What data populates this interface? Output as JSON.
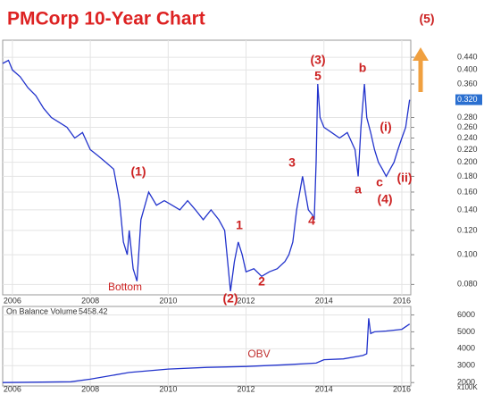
{
  "chart_data": [
    {
      "type": "line",
      "title": "PMCorp 10-Year Chart",
      "log_scale": true,
      "grid": true,
      "xlim": [
        2005.75,
        2016.23
      ],
      "xticks": [
        2006,
        2008,
        2010,
        2012,
        2014,
        2016
      ],
      "ylim": [
        0.074,
        0.5
      ],
      "yticks": [
        {
          "value": 0.08,
          "label": "0.080"
        },
        {
          "value": 0.1,
          "label": "0.100"
        },
        {
          "value": 0.12,
          "label": "0.120"
        },
        {
          "value": 0.14,
          "label": "0.140"
        },
        {
          "value": 0.16,
          "label": "0.160"
        },
        {
          "value": 0.18,
          "label": "0.180"
        },
        {
          "value": 0.2,
          "label": "0.200"
        },
        {
          "value": 0.22,
          "label": "0.220"
        },
        {
          "value": 0.24,
          "label": "0.240"
        },
        {
          "value": 0.26,
          "label": "0.260"
        },
        {
          "value": 0.28,
          "label": "0.280"
        },
        {
          "value": 0.36,
          "label": "0.360"
        },
        {
          "value": 0.4,
          "label": "0.400"
        },
        {
          "value": 0.44,
          "label": "0.440"
        }
      ],
      "last_price": {
        "value": 0.32,
        "label": "0.320"
      },
      "x": [
        2005.75,
        2005.9,
        2006.0,
        2006.2,
        2006.4,
        2006.6,
        2006.8,
        2007.0,
        2007.2,
        2007.4,
        2007.6,
        2007.8,
        2008.0,
        2008.2,
        2008.4,
        2008.6,
        2008.75,
        2008.85,
        2008.95,
        2009.0,
        2009.1,
        2009.2,
        2009.3,
        2009.5,
        2009.7,
        2009.9,
        2010.1,
        2010.3,
        2010.5,
        2010.7,
        2010.9,
        2011.1,
        2011.3,
        2011.45,
        2011.6,
        2011.7,
        2011.8,
        2011.9,
        2012.0,
        2012.2,
        2012.4,
        2012.6,
        2012.8,
        2013.0,
        2013.1,
        2013.2,
        2013.3,
        2013.45,
        2013.6,
        2013.7,
        2013.75,
        2013.8,
        2013.84,
        2013.9,
        2014.0,
        2014.2,
        2014.4,
        2014.6,
        2014.8,
        2014.88,
        2014.95,
        2015.04,
        2015.1,
        2015.2,
        2015.3,
        2015.4,
        2015.5,
        2015.6,
        2015.7,
        2015.8,
        2015.9,
        2016.0,
        2016.1,
        2016.2
      ],
      "series": [
        {
          "name": "PMCorp",
          "color": "#2233cc",
          "values": [
            0.42,
            0.43,
            0.4,
            0.38,
            0.35,
            0.33,
            0.3,
            0.28,
            0.27,
            0.26,
            0.24,
            0.25,
            0.22,
            0.21,
            0.2,
            0.19,
            0.15,
            0.11,
            0.1,
            0.12,
            0.09,
            0.082,
            0.13,
            0.16,
            0.145,
            0.15,
            0.145,
            0.14,
            0.15,
            0.14,
            0.13,
            0.14,
            0.13,
            0.12,
            0.076,
            0.095,
            0.11,
            0.1,
            0.088,
            0.09,
            0.085,
            0.088,
            0.09,
            0.095,
            0.1,
            0.11,
            0.14,
            0.18,
            0.14,
            0.135,
            0.13,
            0.2,
            0.36,
            0.28,
            0.26,
            0.25,
            0.24,
            0.25,
            0.22,
            0.18,
            0.26,
            0.36,
            0.28,
            0.25,
            0.22,
            0.2,
            0.19,
            0.18,
            0.19,
            0.2,
            0.22,
            0.24,
            0.26,
            0.32
          ]
        }
      ],
      "annotations": [
        "(5)",
        "(1)",
        "Bottom",
        "1",
        "(2)",
        "2",
        "3",
        "4",
        "(3)",
        "5",
        "b",
        "(i)",
        "a",
        "c",
        "(ii)",
        "(4)"
      ]
    },
    {
      "type": "line",
      "title": "On Balance Volume",
      "value_label": "5458.42",
      "unit": "x100K",
      "grid": true,
      "xlim": [
        2005.75,
        2016.23
      ],
      "xticks": [
        2006,
        2008,
        2010,
        2012,
        2014,
        2016
      ],
      "ylim": [
        1800,
        6500
      ],
      "yticks": [
        2000,
        3000,
        4000,
        5000,
        6000
      ],
      "x": [
        2005.75,
        2007.5,
        2008.0,
        2009.0,
        2010.0,
        2011.0,
        2012.0,
        2013.0,
        2013.8,
        2014.0,
        2014.5,
        2015.0,
        2015.1,
        2015.15,
        2015.2,
        2015.3,
        2015.6,
        2016.0,
        2016.2
      ],
      "series": [
        {
          "name": "OBV",
          "color": "#2233cc",
          "values": [
            2000,
            2050,
            2200,
            2600,
            2800,
            2900,
            2950,
            3050,
            3150,
            3350,
            3400,
            3600,
            3700,
            5800,
            4900,
            5000,
            5050,
            5150,
            5458
          ]
        }
      ],
      "annotations": [
        "OBV"
      ]
    }
  ]
}
